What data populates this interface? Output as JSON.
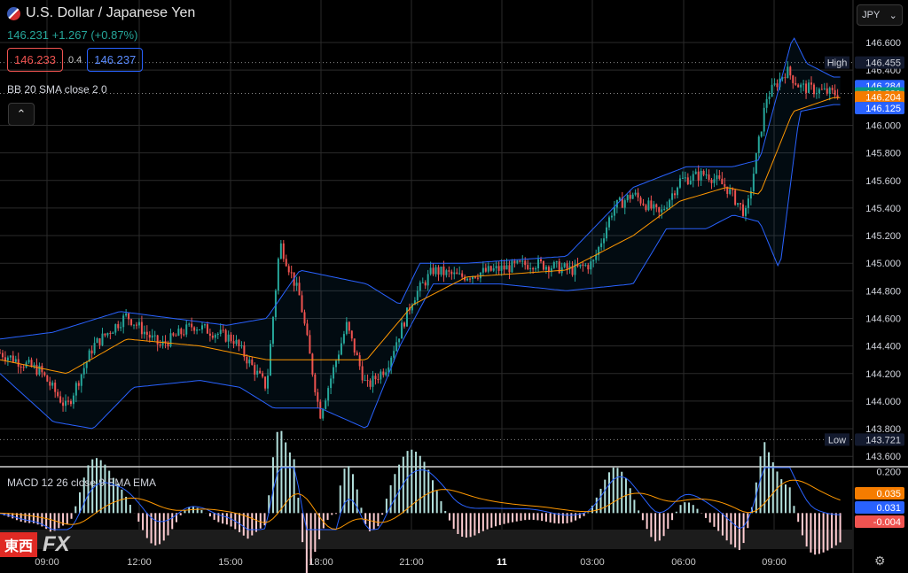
{
  "header": {
    "title": "U.S. Dollar / Japanese Yen",
    "change_text": "146.231 +1.267 (+0.87%)",
    "sell_price": "146.233",
    "spread": "0.4",
    "buy_price": "146.237"
  },
  "currency_select": {
    "value": "JPY",
    "caret": "⌄"
  },
  "collapse_button": {
    "label": "⌃"
  },
  "indicators": {
    "bb_label": "BB 20 SMA close 2 0",
    "macd_label": "MACD 12 26 close 9 EMA EMA"
  },
  "logo": {
    "text1": "東西",
    "text2": "FX"
  },
  "colors": {
    "up": "#26a69a",
    "down": "#ef5350",
    "bb_band": "#2962ff",
    "bb_basis": "#ff9800",
    "macd_line": "#2962ff",
    "signal_line": "#ff9800"
  },
  "chart_data": {
    "type": "candlestick",
    "y_ticks": [
      "146.600",
      "146.400",
      "146.000",
      "145.800",
      "145.600",
      "145.400",
      "145.200",
      "145.000",
      "144.800",
      "144.600",
      "144.400",
      "144.200",
      "144.000",
      "143.800",
      "143.600"
    ],
    "ylim": [
      143.55,
      146.78
    ],
    "x_ticks": [
      "09:00",
      "12:00",
      "15:00",
      "18:00",
      "21:00",
      "11",
      "03:00",
      "06:00",
      "09:00"
    ],
    "xlim": [
      "09:00",
      "10:30 (next day)"
    ],
    "price_labels": [
      {
        "label": "High",
        "value": "146.455",
        "color": "#131a2e",
        "text_color": "#d1d4dc"
      },
      {
        "label": "",
        "value": "146.284",
        "color": "#2962ff",
        "text_color": "#ffffff"
      },
      {
        "label": "",
        "value": "146.231",
        "sub": "03:02",
        "color": "#089981",
        "text_color": "#ffffff"
      },
      {
        "label": "",
        "value": "146.204",
        "color": "#f57c00",
        "text_color": "#ffffff"
      },
      {
        "label": "",
        "value": "146.125",
        "color": "#2962ff",
        "text_color": "#ffffff"
      },
      {
        "label": "Low",
        "value": "143.721",
        "color": "#131a2e",
        "text_color": "#d1d4dc"
      }
    ],
    "price_path": [
      [
        0,
        144.35
      ],
      [
        6,
        144.22
      ],
      [
        10,
        143.95
      ],
      [
        14,
        144.4
      ],
      [
        19,
        144.62
      ],
      [
        24,
        144.4
      ],
      [
        29,
        144.55
      ],
      [
        35,
        144.45
      ],
      [
        40,
        144.1
      ],
      [
        42,
        145.15
      ],
      [
        45,
        144.75
      ],
      [
        48,
        143.9
      ],
      [
        52,
        144.55
      ],
      [
        55,
        144.1
      ],
      [
        58,
        144.25
      ],
      [
        62,
        144.75
      ],
      [
        65,
        144.95
      ],
      [
        69,
        144.9
      ],
      [
        74,
        144.95
      ],
      [
        80,
        145.0
      ],
      [
        86,
        144.95
      ],
      [
        89,
        145.0
      ],
      [
        92,
        145.4
      ],
      [
        95,
        145.5
      ],
      [
        99,
        145.35
      ],
      [
        102,
        145.6
      ],
      [
        106,
        145.65
      ],
      [
        109,
        145.55
      ],
      [
        112,
        145.35
      ],
      [
        115,
        146.2
      ],
      [
        118,
        146.4
      ],
      [
        120,
        146.28
      ],
      [
        125,
        146.23
      ]
    ],
    "x_total": 128,
    "bb_upper_vals": [
      [
        0,
        144.45
      ],
      [
        8,
        144.5
      ],
      [
        18,
        144.65
      ],
      [
        26,
        144.6
      ],
      [
        34,
        144.55
      ],
      [
        40,
        144.6
      ],
      [
        45,
        144.95
      ],
      [
        55,
        144.85
      ],
      [
        60,
        144.7
      ],
      [
        63,
        145.0
      ],
      [
        70,
        145.0
      ],
      [
        85,
        145.05
      ],
      [
        95,
        145.55
      ],
      [
        103,
        145.7
      ],
      [
        110,
        145.7
      ],
      [
        114,
        145.75
      ],
      [
        119,
        146.65
      ],
      [
        121,
        146.45
      ],
      [
        125,
        146.35
      ]
    ],
    "bb_lower_vals": [
      [
        0,
        144.2
      ],
      [
        8,
        143.85
      ],
      [
        14,
        143.8
      ],
      [
        20,
        144.1
      ],
      [
        30,
        144.15
      ],
      [
        36,
        144.1
      ],
      [
        41,
        143.95
      ],
      [
        48,
        143.95
      ],
      [
        55,
        143.8
      ],
      [
        60,
        144.4
      ],
      [
        65,
        144.85
      ],
      [
        75,
        144.85
      ],
      [
        85,
        144.8
      ],
      [
        95,
        144.85
      ],
      [
        100,
        145.25
      ],
      [
        106,
        145.25
      ],
      [
        110,
        145.35
      ],
      [
        114,
        145.3
      ],
      [
        117,
        144.95
      ],
      [
        120,
        146.1
      ],
      [
        125,
        146.15
      ]
    ],
    "bb_basis_vals": [
      [
        0,
        144.3
      ],
      [
        10,
        144.2
      ],
      [
        19,
        144.45
      ],
      [
        30,
        144.4
      ],
      [
        40,
        144.3
      ],
      [
        48,
        144.3
      ],
      [
        55,
        144.3
      ],
      [
        62,
        144.7
      ],
      [
        70,
        144.9
      ],
      [
        85,
        144.95
      ],
      [
        95,
        145.2
      ],
      [
        102,
        145.45
      ],
      [
        109,
        145.55
      ],
      [
        114,
        145.5
      ],
      [
        119,
        146.1
      ],
      [
        125,
        146.2
      ]
    ],
    "macd": {
      "y_ticks": [
        "0.200"
      ],
      "ylim": [
        -0.08,
        0.22
      ],
      "labels": [
        {
          "value": "0.035",
          "color": "#f57c00"
        },
        {
          "value": "0.031",
          "color": "#2962ff"
        },
        {
          "value": "-0.004",
          "color": "#ef5350"
        }
      ]
    }
  }
}
